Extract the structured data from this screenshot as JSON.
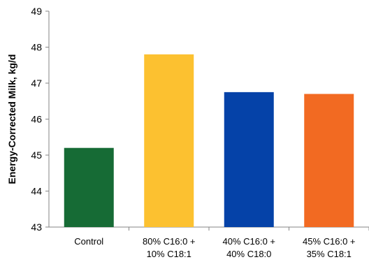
{
  "chart_data": {
    "type": "bar",
    "title": "",
    "xlabel": "",
    "ylabel": "Energy-Corrected Milk, kg/d",
    "ylim": [
      43,
      49
    ],
    "yticks": [
      43,
      44,
      45,
      46,
      47,
      48,
      49
    ],
    "grid": false,
    "categories": [
      [
        "Control"
      ],
      [
        "80% C16:0 +",
        "10% C18:1"
      ],
      [
        "40% C16:0 +",
        "40% C18:0"
      ],
      [
        "45% C16:0 +",
        "35% C18:1"
      ]
    ],
    "values": [
      45.2,
      47.8,
      46.75,
      46.7
    ],
    "colors": [
      "#166b35",
      "#fcc130",
      "#0542a8",
      "#f26a22"
    ]
  }
}
